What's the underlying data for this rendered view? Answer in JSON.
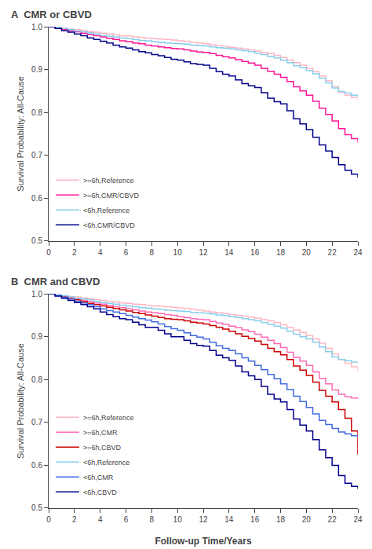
{
  "chart_data": [
    {
      "type": "step",
      "title": "A  CMR or CBVD",
      "ylabel": "Survival Probability: All-Cause",
      "xlim": [
        0,
        24
      ],
      "ylim": [
        0.5,
        1.0
      ],
      "xticks": [
        0,
        2,
        4,
        6,
        8,
        10,
        12,
        14,
        16,
        18,
        20,
        22,
        24
      ],
      "yticks": [
        0.5,
        0.6,
        0.7,
        0.8,
        0.9,
        {
          "value": 1.0,
          "label": "1.0"
        }
      ],
      "grid": false,
      "legend": "lower left",
      "x": [
        0,
        0.5,
        1,
        1.5,
        2,
        2.5,
        3,
        3.5,
        4,
        4.5,
        5,
        5.5,
        6,
        6.5,
        7,
        7.5,
        8,
        8.5,
        9,
        9.5,
        10,
        10.5,
        11,
        11.5,
        12,
        12.5,
        13,
        13.5,
        14,
        14.5,
        15,
        15.5,
        16,
        16.5,
        17,
        17.5,
        18,
        18.5,
        19,
        19.5,
        20,
        20.5,
        21,
        21.5,
        22,
        22.5,
        23,
        23.5,
        24
      ],
      "series": [
        {
          "name": ">=6h,Reference",
          "color": "#FFB6C1",
          "values": [
            1.0,
            0.998,
            0.996,
            0.994,
            0.993,
            0.991,
            0.989,
            0.987,
            0.985,
            0.983,
            0.981,
            0.979,
            0.978,
            0.976,
            0.975,
            0.973,
            0.972,
            0.971,
            0.97,
            0.969,
            0.967,
            0.966,
            0.964,
            0.962,
            0.96,
            0.958,
            0.956,
            0.954,
            0.952,
            0.95,
            0.948,
            0.946,
            0.943,
            0.94,
            0.937,
            0.933,
            0.928,
            0.922,
            0.916,
            0.91,
            0.903,
            0.895,
            0.885,
            0.874,
            0.86,
            0.847,
            0.84,
            0.835,
            0.83
          ]
        },
        {
          "name": ">=6h,CMR/CBVD",
          "color": "#FF1493",
          "values": [
            1.0,
            0.997,
            0.994,
            0.991,
            0.988,
            0.985,
            0.982,
            0.979,
            0.976,
            0.973,
            0.97,
            0.967,
            0.965,
            0.962,
            0.96,
            0.957,
            0.955,
            0.953,
            0.951,
            0.949,
            0.948,
            0.946,
            0.943,
            0.941,
            0.94,
            0.937,
            0.933,
            0.93,
            0.927,
            0.923,
            0.919,
            0.915,
            0.91,
            0.903,
            0.896,
            0.889,
            0.882,
            0.872,
            0.86,
            0.85,
            0.84,
            0.826,
            0.81,
            0.795,
            0.78,
            0.762,
            0.748,
            0.739,
            0.73
          ]
        },
        {
          "name": "<6h,Reference",
          "color": "#87CEEB",
          "values": [
            1.0,
            0.998,
            0.996,
            0.993,
            0.99,
            0.988,
            0.986,
            0.983,
            0.98,
            0.978,
            0.976,
            0.974,
            0.972,
            0.97,
            0.968,
            0.967,
            0.965,
            0.964,
            0.962,
            0.961,
            0.96,
            0.959,
            0.957,
            0.956,
            0.955,
            0.953,
            0.951,
            0.95,
            0.948,
            0.946,
            0.944,
            0.942,
            0.938,
            0.935,
            0.931,
            0.927,
            0.922,
            0.916,
            0.909,
            0.904,
            0.898,
            0.89,
            0.88,
            0.869,
            0.857,
            0.849,
            0.845,
            0.84,
            0.836
          ]
        },
        {
          "name": "<6h,CMR/CBVD",
          "color": "#00008B",
          "values": [
            1.0,
            0.996,
            0.991,
            0.987,
            0.983,
            0.979,
            0.974,
            0.97,
            0.966,
            0.962,
            0.957,
            0.953,
            0.95,
            0.946,
            0.942,
            0.939,
            0.935,
            0.932,
            0.928,
            0.924,
            0.922,
            0.918,
            0.914,
            0.912,
            0.91,
            0.903,
            0.895,
            0.889,
            0.885,
            0.876,
            0.867,
            0.862,
            0.858,
            0.846,
            0.833,
            0.825,
            0.82,
            0.804,
            0.785,
            0.773,
            0.76,
            0.742,
            0.724,
            0.71,
            0.695,
            0.678,
            0.665,
            0.656,
            0.648
          ]
        }
      ]
    },
    {
      "type": "step",
      "title": "B  CMR and CBVD",
      "xlabel": "Follow-up Time/Years",
      "ylabel": "Survival Probability: All-Cause",
      "xlim": [
        0,
        24
      ],
      "ylim": [
        0.5,
        1.0
      ],
      "xticks": [
        0,
        2,
        4,
        6,
        8,
        10,
        12,
        14,
        16,
        18,
        20,
        22,
        24
      ],
      "yticks": [
        0.5,
        0.6,
        0.7,
        0.8,
        0.9,
        {
          "value": 1.0,
          "label": "1.0"
        }
      ],
      "grid": false,
      "legend": "lower left",
      "x": [
        0,
        0.5,
        1,
        1.5,
        2,
        2.5,
        3,
        3.5,
        4,
        4.5,
        5,
        5.5,
        6,
        6.5,
        7,
        7.5,
        8,
        8.5,
        9,
        9.5,
        10,
        10.5,
        11,
        11.5,
        12,
        12.5,
        13,
        13.5,
        14,
        14.5,
        15,
        15.5,
        16,
        16.5,
        17,
        17.5,
        18,
        18.5,
        19,
        19.5,
        20,
        20.5,
        21,
        21.5,
        22,
        22.5,
        23,
        23.5,
        24
      ],
      "series": [
        {
          "name": ">=6h,Reference",
          "color": "#FFB6C1",
          "values": [
            1.0,
            0.998,
            0.996,
            0.994,
            0.993,
            0.991,
            0.989,
            0.987,
            0.985,
            0.983,
            0.981,
            0.979,
            0.978,
            0.976,
            0.975,
            0.973,
            0.972,
            0.971,
            0.97,
            0.969,
            0.967,
            0.966,
            0.964,
            0.962,
            0.96,
            0.958,
            0.956,
            0.954,
            0.952,
            0.95,
            0.948,
            0.946,
            0.943,
            0.94,
            0.937,
            0.933,
            0.928,
            0.922,
            0.916,
            0.91,
            0.903,
            0.895,
            0.885,
            0.873,
            0.86,
            0.847,
            0.838,
            0.83,
            0.82
          ]
        },
        {
          "name": ">=6h,CMR",
          "color": "#FF69B4",
          "values": [
            1.0,
            0.997,
            0.994,
            0.991,
            0.988,
            0.985,
            0.982,
            0.979,
            0.976,
            0.973,
            0.97,
            0.968,
            0.965,
            0.963,
            0.96,
            0.958,
            0.956,
            0.954,
            0.952,
            0.95,
            0.947,
            0.945,
            0.942,
            0.941,
            0.94,
            0.936,
            0.932,
            0.929,
            0.925,
            0.921,
            0.916,
            0.912,
            0.906,
            0.899,
            0.892,
            0.884,
            0.875,
            0.864,
            0.852,
            0.843,
            0.833,
            0.818,
            0.803,
            0.79,
            0.776,
            0.766,
            0.76,
            0.757,
            0.755
          ]
        },
        {
          "name": ">=6h,CBVD",
          "color": "#CC0000",
          "values": [
            1.0,
            0.997,
            0.993,
            0.989,
            0.986,
            0.982,
            0.978,
            0.975,
            0.972,
            0.969,
            0.966,
            0.963,
            0.96,
            0.957,
            0.954,
            0.951,
            0.948,
            0.945,
            0.942,
            0.941,
            0.94,
            0.937,
            0.934,
            0.932,
            0.93,
            0.926,
            0.922,
            0.918,
            0.913,
            0.907,
            0.901,
            0.896,
            0.89,
            0.882,
            0.873,
            0.865,
            0.858,
            0.847,
            0.832,
            0.822,
            0.81,
            0.794,
            0.775,
            0.761,
            0.748,
            0.73,
            0.71,
            0.68,
            0.625
          ]
        },
        {
          "name": "<6h,Reference",
          "color": "#87CEEB",
          "values": [
            1.0,
            0.998,
            0.996,
            0.993,
            0.99,
            0.988,
            0.986,
            0.983,
            0.98,
            0.978,
            0.976,
            0.974,
            0.972,
            0.97,
            0.968,
            0.967,
            0.965,
            0.964,
            0.962,
            0.961,
            0.96,
            0.959,
            0.957,
            0.956,
            0.955,
            0.953,
            0.951,
            0.95,
            0.947,
            0.945,
            0.942,
            0.94,
            0.937,
            0.933,
            0.929,
            0.925,
            0.92,
            0.913,
            0.906,
            0.9,
            0.895,
            0.887,
            0.876,
            0.865,
            0.853,
            0.847,
            0.844,
            0.841,
            0.84
          ]
        },
        {
          "name": "<6h,CMR",
          "color": "#4169E1",
          "values": [
            1.0,
            0.996,
            0.992,
            0.988,
            0.983,
            0.979,
            0.975,
            0.97,
            0.965,
            0.961,
            0.958,
            0.954,
            0.95,
            0.946,
            0.942,
            0.939,
            0.935,
            0.93,
            0.924,
            0.919,
            0.915,
            0.909,
            0.903,
            0.899,
            0.895,
            0.887,
            0.879,
            0.873,
            0.868,
            0.86,
            0.851,
            0.843,
            0.833,
            0.823,
            0.812,
            0.802,
            0.79,
            0.777,
            0.761,
            0.749,
            0.735,
            0.72,
            0.705,
            0.695,
            0.686,
            0.678,
            0.673,
            0.669,
            0.666
          ]
        },
        {
          "name": "<6h,CBVD",
          "color": "#00008B",
          "values": [
            1.0,
            0.995,
            0.99,
            0.985,
            0.98,
            0.975,
            0.97,
            0.965,
            0.958,
            0.952,
            0.947,
            0.942,
            0.94,
            0.934,
            0.928,
            0.922,
            0.922,
            0.915,
            0.907,
            0.9,
            0.9,
            0.892,
            0.884,
            0.88,
            0.878,
            0.868,
            0.857,
            0.851,
            0.845,
            0.832,
            0.818,
            0.809,
            0.8,
            0.784,
            0.766,
            0.755,
            0.748,
            0.73,
            0.708,
            0.694,
            0.68,
            0.66,
            0.636,
            0.618,
            0.6,
            0.576,
            0.558,
            0.551,
            0.545
          ]
        }
      ]
    }
  ]
}
